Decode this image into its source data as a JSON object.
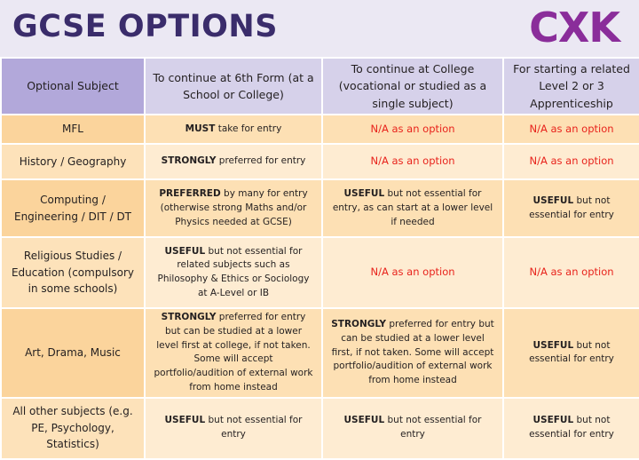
{
  "header": {
    "title": "GCSE OPTIONS",
    "logo": "CXK"
  },
  "table": {
    "columns": [
      "Optional Subject",
      "To continue at 6th Form (at a School or College)",
      "To continue at College (vocational or studied as a single subject)",
      "For starting a related Level 2 or 3 Apprenticeship"
    ],
    "alert_color": "#e8231c",
    "rows": [
      {
        "subject": "MFL",
        "cells": [
          {
            "strong": "MUST",
            "text": "take for entry"
          },
          {
            "text": "N/A as an option",
            "alert": true
          },
          {
            "text": "N/A as an option",
            "alert": true
          }
        ]
      },
      {
        "subject": "History / Geography",
        "cells": [
          {
            "strong": "STRONGLY",
            "text": "preferred for entry"
          },
          {
            "text": "N/A as an option",
            "alert": true
          },
          {
            "text": "N/A as an option",
            "alert": true
          }
        ]
      },
      {
        "subject": "Computing / Engineering / DIT / DT",
        "cells": [
          {
            "strong": "PREFERRED",
            "text": "by many for entry (otherwise strong Maths and/or Physics needed at GCSE)"
          },
          {
            "strong": "USEFUL",
            "text": "but not essential for entry, as can start at a lower level if needed"
          },
          {
            "strong": "USEFUL",
            "text": "but not essential for entry"
          }
        ]
      },
      {
        "subject": "Religious Studies / Education (compulsory in some schools)",
        "cells": [
          {
            "strong": "USEFUL",
            "text": "but not essential for related subjects such as Philosophy & Ethics or Sociology at A-Level or IB"
          },
          {
            "text": "N/A as an option",
            "alert": true
          },
          {
            "text": "N/A as an option",
            "alert": true
          }
        ]
      },
      {
        "subject": "Art, Drama, Music",
        "cells": [
          {
            "strong": "STRONGLY",
            "text": "preferred for entry but can be studied at a lower level first at college, if not taken. Some will accept portfolio/audition of external work from home instead"
          },
          {
            "strong": "STRONGLY",
            "text": "preferred for entry but can be studied at a lower level first, if not taken. Some will accept portfolio/audition of external work from home instead"
          },
          {
            "strong": "USEFUL",
            "text": "but not essential for entry"
          }
        ]
      },
      {
        "subject": "All other subjects (e.g. PE, Psychology, Statistics)",
        "cells": [
          {
            "strong": "USEFUL",
            "text": "but not essential for entry"
          },
          {
            "strong": "USEFUL",
            "text": "but not essential for entry"
          },
          {
            "strong": "USEFUL",
            "text": "but not essential for entry"
          }
        ]
      }
    ]
  }
}
